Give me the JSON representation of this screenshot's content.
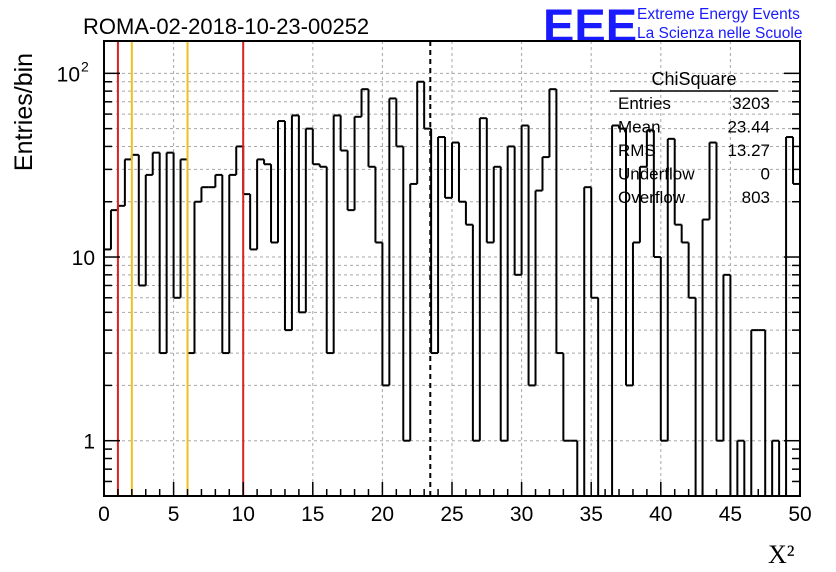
{
  "run_title": "ROMA-02-2018-10-23-00252",
  "logo": {
    "mark": "EEE",
    "line1": "Extreme Energy Events",
    "line2": "La Scienza nelle Scuole",
    "color": "#1a1aff"
  },
  "colors": {
    "red": "#dd2020",
    "yellow": "#f0c020",
    "grid": "#a8a8a8"
  },
  "chart_data": {
    "type": "histogram",
    "title": "ROMA-02-2018-10-23-00252",
    "xlabel": "X²",
    "ylabel": "Entries/bin",
    "x_range": [
      0,
      50
    ],
    "y_range": [
      0.5,
      150
    ],
    "y_scale": "log",
    "grid": true,
    "bin_width": 0.5,
    "x_ticks": [
      "0",
      "5",
      "10",
      "15",
      "20",
      "25",
      "30",
      "35",
      "40",
      "45",
      "50"
    ],
    "y_ticks": [
      {
        "value": 1,
        "label": "1"
      },
      {
        "value": 10,
        "label": "10"
      },
      {
        "value": 100,
        "label": "10",
        "sup": "2"
      }
    ],
    "bin_counts": [
      11,
      18,
      19,
      34,
      36,
      7,
      28,
      37,
      3,
      37,
      6,
      34,
      3,
      20,
      24,
      24,
      28,
      3,
      28,
      40,
      22,
      11,
      34,
      32,
      12,
      55,
      4,
      59,
      5,
      50,
      32,
      31,
      3,
      59,
      38,
      18,
      58,
      82,
      31,
      12,
      2,
      73,
      40,
      1,
      25,
      90,
      50,
      3,
      45,
      21,
      42,
      20,
      15,
      1,
      57,
      12,
      31,
      1,
      40,
      8,
      52,
      2,
      23,
      35,
      82,
      3,
      1,
      1,
      0,
      24,
      6,
      0,
      0,
      52,
      50,
      2,
      12,
      31,
      49,
      10,
      1,
      44,
      15,
      12,
      6,
      0,
      16,
      42,
      1,
      8,
      0,
      1,
      0,
      4,
      4,
      0,
      1,
      0,
      45,
      25
    ],
    "vlines": [
      {
        "x": 1,
        "color": "red",
        "style": "solid"
      },
      {
        "x": 2,
        "color": "yellow",
        "style": "solid"
      },
      {
        "x": 6,
        "color": "yellow",
        "style": "solid"
      },
      {
        "x": 10,
        "color": "red",
        "style": "solid"
      },
      {
        "x": 23.44,
        "color": "black",
        "style": "dashed"
      }
    ],
    "stats": {
      "name": "ChiSquare",
      "rows": [
        {
          "label": "Entries",
          "value": "3203"
        },
        {
          "label": "Mean",
          "value": "23.44"
        },
        {
          "label": "RMS",
          "value": "13.27"
        },
        {
          "label": "Underflow",
          "value": "0"
        },
        {
          "label": "Overflow",
          "value": "803"
        }
      ]
    }
  }
}
